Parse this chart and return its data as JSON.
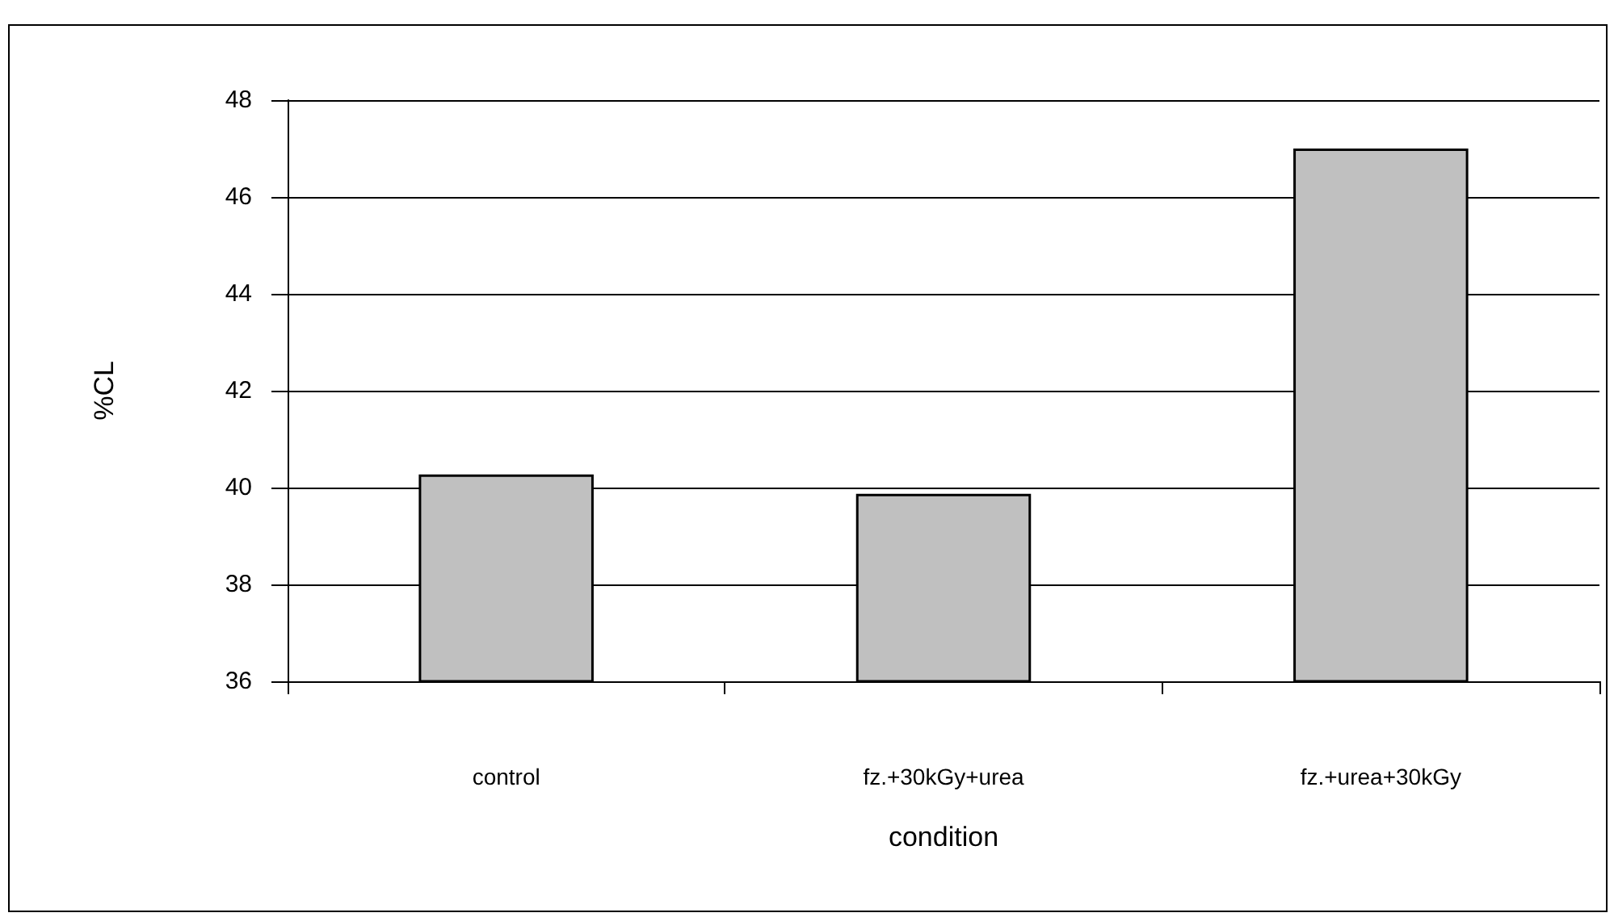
{
  "chart_data": {
    "type": "bar",
    "xlabel": "condition",
    "ylabel": "%CL",
    "categories": [
      "control",
      "fz.+30kGy+urea",
      "fz.+urea+30kGy"
    ],
    "values": [
      40.27,
      39.87,
      47.0
    ],
    "color": "#c0c0c0",
    "ylim": [
      36,
      48
    ],
    "yticks": [
      36,
      38,
      40,
      42,
      44,
      46,
      48
    ],
    "grid": "y"
  }
}
